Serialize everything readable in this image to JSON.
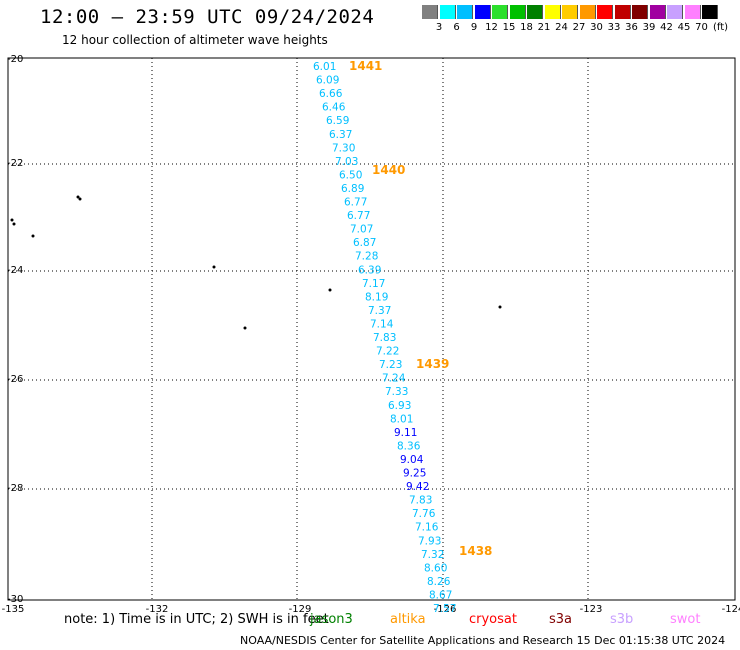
{
  "header": {
    "title": "12:00 – 23:59 UTC 09/24/2024",
    "subtitle": "12 hour collection of altimeter wave heights"
  },
  "legend": {
    "colors": [
      "#808080",
      "#00ffff",
      "#00bfff",
      "#0000ff",
      "#2ce02c",
      "#00c000",
      "#008000",
      "#ffff00",
      "#ffcc00",
      "#ff9900",
      "#ff0000",
      "#c00000",
      "#800000",
      "#a000a0",
      "#c8a0ff",
      "#ff80ff",
      "#000000"
    ],
    "ticks": [
      "3",
      "6",
      "9",
      "12",
      "15",
      "18",
      "21",
      "24",
      "27",
      "30",
      "33",
      "36",
      "39",
      "42",
      "45",
      "70"
    ],
    "unit": "(ft)"
  },
  "axes": {
    "lon_min": -135,
    "lon_max": -124,
    "lat_min": -30,
    "lat_max": -20,
    "x_ticks": [
      "-135",
      "-132",
      "-129",
      "-126",
      "-123",
      "-124"
    ],
    "y_ticks": [
      "-20",
      "-22",
      "-24",
      "-26",
      "-28",
      "-30"
    ]
  },
  "track": {
    "points": [
      {
        "v": "6.01",
        "c": "#00bfff"
      },
      {
        "v": "6.09",
        "c": "#00bfff"
      },
      {
        "v": "6.66",
        "c": "#00bfff"
      },
      {
        "v": "6.46",
        "c": "#00bfff"
      },
      {
        "v": "6.59",
        "c": "#00bfff"
      },
      {
        "v": "6.37",
        "c": "#00bfff"
      },
      {
        "v": "7.30",
        "c": "#00bfff"
      },
      {
        "v": "7.03",
        "c": "#00bfff"
      },
      {
        "v": "6.50",
        "c": "#00bfff"
      },
      {
        "v": "6.89",
        "c": "#00bfff"
      },
      {
        "v": "6.77",
        "c": "#00bfff"
      },
      {
        "v": "6.77",
        "c": "#00bfff"
      },
      {
        "v": "7.07",
        "c": "#00bfff"
      },
      {
        "v": "6.87",
        "c": "#00bfff"
      },
      {
        "v": "7.28",
        "c": "#00bfff"
      },
      {
        "v": "6.39",
        "c": "#00bfff"
      },
      {
        "v": "7.17",
        "c": "#00bfff"
      },
      {
        "v": "8.19",
        "c": "#00bfff"
      },
      {
        "v": "7.37",
        "c": "#00bfff"
      },
      {
        "v": "7.14",
        "c": "#00bfff"
      },
      {
        "v": "7.83",
        "c": "#00bfff"
      },
      {
        "v": "7.22",
        "c": "#00bfff"
      },
      {
        "v": "7.23",
        "c": "#00bfff"
      },
      {
        "v": "7.24",
        "c": "#00bfff"
      },
      {
        "v": "7.33",
        "c": "#00bfff"
      },
      {
        "v": "6.93",
        "c": "#00bfff"
      },
      {
        "v": "8.01",
        "c": "#00bfff"
      },
      {
        "v": "9.11",
        "c": "#0000ff"
      },
      {
        "v": "8.36",
        "c": "#00bfff"
      },
      {
        "v": "9.04",
        "c": "#0000ff"
      },
      {
        "v": "9.25",
        "c": "#0000ff"
      },
      {
        "v": "9.42",
        "c": "#0000ff"
      },
      {
        "v": "7.83",
        "c": "#00bfff"
      },
      {
        "v": "7.76",
        "c": "#00bfff"
      },
      {
        "v": "7.16",
        "c": "#00bfff"
      },
      {
        "v": "7.93",
        "c": "#00bfff"
      },
      {
        "v": "7.32",
        "c": "#00bfff"
      },
      {
        "v": "8.60",
        "c": "#00bfff"
      },
      {
        "v": "8.26",
        "c": "#00bfff"
      },
      {
        "v": "8.67",
        "c": "#00bfff"
      },
      {
        "v": "7.57",
        "c": "#00bfff"
      }
    ],
    "times": [
      "1441",
      "1440",
      "1439",
      "1438"
    ],
    "time_color": "#ff9900"
  },
  "note_text": "note:  1) Time is in UTC; 2) SWH is in feet",
  "satellites": [
    {
      "name": "jason3",
      "color": "#008000"
    },
    {
      "name": "altika",
      "color": "#ff9900"
    },
    {
      "name": "cryosat",
      "color": "#ff0000"
    },
    {
      "name": "s3a",
      "color": "#800000"
    },
    {
      "name": "s3b",
      "color": "#c8a0ff"
    },
    {
      "name": "swot",
      "color": "#ff80ff"
    }
  ],
  "footer": "NOAA/NESDIS Center for Satellite Applications and Research   15 Dec 01:15:38 UTC 2024"
}
